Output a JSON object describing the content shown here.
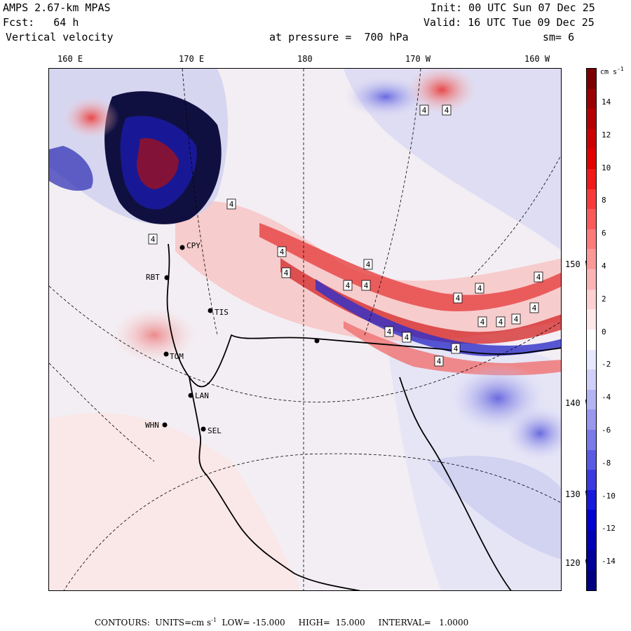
{
  "header": {
    "model": "AMPS 2.67-km MPAS",
    "init": "Init: 00 UTC Sun 07 Dec 25",
    "forecast": "Fcst:   64 h",
    "valid": "Valid: 16 UTC Tue 09 Dec 25",
    "field": "Vertical velocity",
    "level": "at pressure =  700 hPa",
    "smoothing": "sm= 6"
  },
  "longitude_labels": [
    "160 E",
    "170 E",
    "180",
    "170 W",
    "160 W"
  ],
  "latitude_labels": [
    "150 W",
    "140 W",
    "130 W",
    "120 W"
  ],
  "colorbar": {
    "units": "cm s-1",
    "ticks": [
      "14",
      "12",
      "10",
      "8",
      "6",
      "4",
      "2",
      "0",
      "-2",
      "-4",
      "-6",
      "-8",
      "-10",
      "-12",
      "-14"
    ],
    "colors": [
      "#7a0000",
      "#9a0000",
      "#b40000",
      "#cc0000",
      "#e00000",
      "#f01818",
      "#f83a3a",
      "#fa5a5a",
      "#fb7a7a",
      "#fc9898",
      "#fdb4b4",
      "#fed0d0",
      "#ffe8e8",
      "#ffffff",
      "#e8e8ff",
      "#d0d0fa",
      "#b4b4f4",
      "#9898ee",
      "#7a7ae8",
      "#5a5ae4",
      "#3a3ae0",
      "#1818dc",
      "#0000d0",
      "#0000b4",
      "#00009a",
      "#000080"
    ]
  },
  "stations": [
    "CPY",
    "RBT",
    "TIS",
    "TOM",
    "LAN",
    "WHN",
    "SEL"
  ],
  "footer": {
    "prefix": "CONTOURS:  UNITS=cm s",
    "superscript": "-1",
    "rest": "  LOW= -15.000     HIGH=  15.000     INTERVAL=   1.0000"
  }
}
